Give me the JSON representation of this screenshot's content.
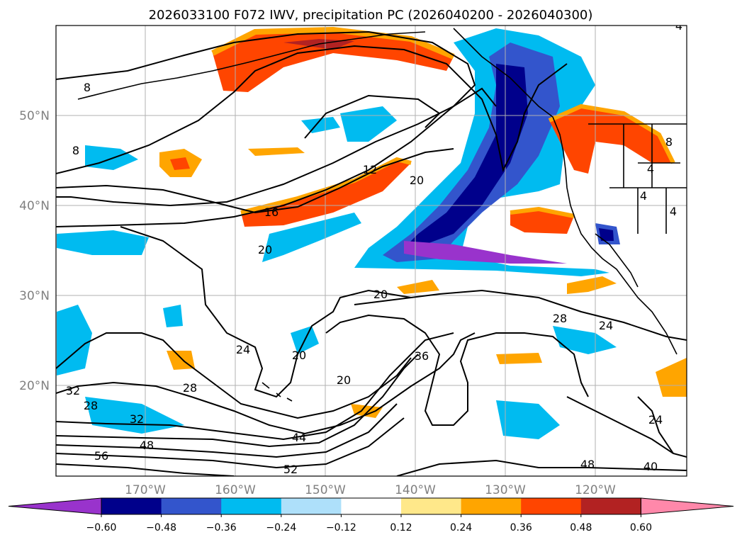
{
  "title": "2026033100 F072 IWV, precipitation PC (2026040200 - 2026040300)",
  "map": {
    "lat_labels": [
      "50°N",
      "40°N",
      "30°N",
      "20°N"
    ],
    "lon_labels": [
      "170°W",
      "160°W",
      "150°W",
      "140°W",
      "130°W",
      "120°W"
    ],
    "gridlines": true
  },
  "contour_labels": [
    "8",
    "8",
    "12",
    "16",
    "20",
    "20",
    "20",
    "20",
    "20",
    "24",
    "24",
    "24",
    "28",
    "28",
    "28",
    "32",
    "32",
    "36",
    "40",
    "44",
    "48",
    "48",
    "52",
    "56",
    "4",
    "4",
    "4",
    "8",
    "4"
  ],
  "colorbar": {
    "ticks": [
      "−0.60",
      "−0.48",
      "−0.36",
      "−0.24",
      "−0.12",
      "0.12",
      "0.24",
      "0.36",
      "0.48",
      "0.60"
    ],
    "colors": [
      "#9933cc",
      "#00008b",
      "#3355cc",
      "#00bbf0",
      "#aee0fa",
      "#ffffff",
      "#ffe88a",
      "#ffa500",
      "#ff4500",
      "#b22222",
      "#ff88aa"
    ],
    "extend": "both"
  }
}
